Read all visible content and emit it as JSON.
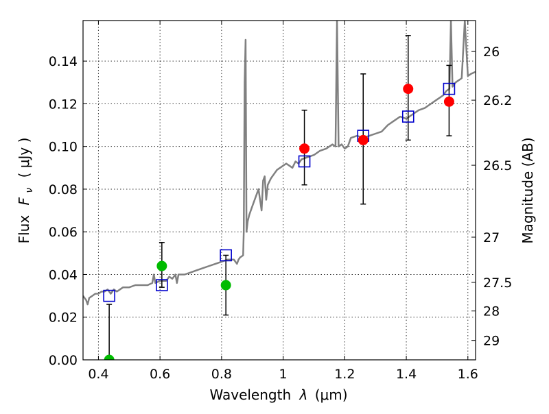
{
  "chart_data": {
    "type": "scatter",
    "xlabel_prefix": "Wavelength",
    "xlabel_symbol": "λ",
    "xlabel_unit": "(μm)",
    "ylabel_prefix": "Flux",
    "ylabel_symbol": "F",
    "ylabel_subscript": "ν",
    "ylabel_unit": "( μJy )",
    "y2label": "Magnitude (AB)",
    "xlim": [
      0.35,
      1.625
    ],
    "ylim": [
      0.0,
      0.159
    ],
    "grid": true,
    "x_ticks": [
      0.4,
      0.6,
      0.8,
      1.0,
      1.2,
      1.4,
      1.6
    ],
    "x_tick_labels": [
      "0.4",
      "0.6",
      "0.8",
      "1",
      "1.2",
      "1.4",
      "1.6"
    ],
    "y_ticks": [
      0.0,
      0.02,
      0.04,
      0.06,
      0.08,
      0.1,
      0.12,
      0.14
    ],
    "y_tick_labels": [
      "0.00",
      "0.02",
      "0.04",
      "0.06",
      "0.08",
      "0.10",
      "0.12",
      "0.14"
    ],
    "y2_ticks": [
      {
        "flux": 0.1445,
        "label": "26"
      },
      {
        "flux": 0.1217,
        "label": "26.2"
      },
      {
        "flux": 0.0912,
        "label": "26.5"
      },
      {
        "flux": 0.0575,
        "label": "27"
      },
      {
        "flux": 0.0363,
        "label": "27.5"
      },
      {
        "flux": 0.0229,
        "label": "28"
      },
      {
        "flux": 0.0091,
        "label": "29"
      }
    ],
    "model_sed_color": "#808080",
    "model_sed": [
      [
        0.35,
        0.03
      ],
      [
        0.36,
        0.028
      ],
      [
        0.365,
        0.026
      ],
      [
        0.37,
        0.029
      ],
      [
        0.38,
        0.03
      ],
      [
        0.39,
        0.031
      ],
      [
        0.4,
        0.031
      ],
      [
        0.41,
        0.032
      ],
      [
        0.42,
        0.032
      ],
      [
        0.43,
        0.033
      ],
      [
        0.44,
        0.031
      ],
      [
        0.45,
        0.033
      ],
      [
        0.46,
        0.032
      ],
      [
        0.47,
        0.033
      ],
      [
        0.48,
        0.034
      ],
      [
        0.5,
        0.034
      ],
      [
        0.52,
        0.035
      ],
      [
        0.54,
        0.035
      ],
      [
        0.56,
        0.035
      ],
      [
        0.575,
        0.036
      ],
      [
        0.58,
        0.04
      ],
      [
        0.585,
        0.036
      ],
      [
        0.6,
        0.037
      ],
      [
        0.62,
        0.037
      ],
      [
        0.63,
        0.039
      ],
      [
        0.64,
        0.038
      ],
      [
        0.65,
        0.04
      ],
      [
        0.655,
        0.036
      ],
      [
        0.66,
        0.04
      ],
      [
        0.68,
        0.04
      ],
      [
        0.7,
        0.041
      ],
      [
        0.72,
        0.042
      ],
      [
        0.74,
        0.043
      ],
      [
        0.76,
        0.044
      ],
      [
        0.78,
        0.045
      ],
      [
        0.8,
        0.046
      ],
      [
        0.82,
        0.047
      ],
      [
        0.84,
        0.047
      ],
      [
        0.85,
        0.045
      ],
      [
        0.855,
        0.047
      ],
      [
        0.86,
        0.048
      ],
      [
        0.87,
        0.049
      ],
      [
        0.872,
        0.06
      ],
      [
        0.875,
        0.13
      ],
      [
        0.878,
        0.15
      ],
      [
        0.881,
        0.06
      ],
      [
        0.885,
        0.065
      ],
      [
        0.89,
        0.068
      ],
      [
        0.9,
        0.072
      ],
      [
        0.91,
        0.076
      ],
      [
        0.92,
        0.08
      ],
      [
        0.93,
        0.07
      ],
      [
        0.935,
        0.084
      ],
      [
        0.94,
        0.086
      ],
      [
        0.945,
        0.075
      ],
      [
        0.95,
        0.082
      ],
      [
        0.96,
        0.085
      ],
      [
        0.97,
        0.087
      ],
      [
        0.98,
        0.089
      ],
      [
        0.99,
        0.09
      ],
      [
        1.0,
        0.091
      ],
      [
        1.01,
        0.092
      ],
      [
        1.02,
        0.091
      ],
      [
        1.03,
        0.09
      ],
      [
        1.04,
        0.093
      ],
      [
        1.05,
        0.092
      ],
      [
        1.06,
        0.094
      ],
      [
        1.08,
        0.095
      ],
      [
        1.1,
        0.096
      ],
      [
        1.12,
        0.098
      ],
      [
        1.14,
        0.099
      ],
      [
        1.16,
        0.101
      ],
      [
        1.17,
        0.1
      ],
      [
        1.175,
        0.159
      ],
      [
        1.18,
        0.1
      ],
      [
        1.19,
        0.101
      ],
      [
        1.2,
        0.099
      ],
      [
        1.21,
        0.1
      ],
      [
        1.22,
        0.104
      ],
      [
        1.24,
        0.105
      ],
      [
        1.26,
        0.104
      ],
      [
        1.28,
        0.105
      ],
      [
        1.3,
        0.106
      ],
      [
        1.32,
        0.107
      ],
      [
        1.34,
        0.11
      ],
      [
        1.36,
        0.112
      ],
      [
        1.38,
        0.114
      ],
      [
        1.4,
        0.113
      ],
      [
        1.42,
        0.115
      ],
      [
        1.44,
        0.117
      ],
      [
        1.46,
        0.118
      ],
      [
        1.48,
        0.12
      ],
      [
        1.5,
        0.122
      ],
      [
        1.52,
        0.124
      ],
      [
        1.53,
        0.126
      ],
      [
        1.54,
        0.127
      ],
      [
        1.545,
        0.159
      ],
      [
        1.55,
        0.128
      ],
      [
        1.56,
        0.13
      ],
      [
        1.57,
        0.131
      ],
      [
        1.58,
        0.132
      ],
      [
        1.59,
        0.159
      ],
      [
        1.6,
        0.133
      ],
      [
        1.61,
        0.134
      ],
      [
        1.625,
        0.135
      ]
    ],
    "model_photometry": {
      "marker": "open-square",
      "color": "#0000cc",
      "points": [
        {
          "x": 0.435,
          "y": 0.03
        },
        {
          "x": 0.606,
          "y": 0.035
        },
        {
          "x": 0.814,
          "y": 0.049
        },
        {
          "x": 1.069,
          "y": 0.093
        },
        {
          "x": 1.26,
          "y": 0.105
        },
        {
          "x": 1.406,
          "y": 0.114
        },
        {
          "x": 1.539,
          "y": 0.127
        }
      ]
    },
    "observed_optical": {
      "marker": "filled-circle",
      "color": "#00bb00",
      "points": [
        {
          "x": 0.435,
          "y": 0.0,
          "yerr": [
            0.0,
            0.026
          ]
        },
        {
          "x": 0.606,
          "y": 0.044,
          "yerr": [
            0.034,
            0.055
          ]
        },
        {
          "x": 0.814,
          "y": 0.035,
          "yerr": [
            0.021,
            0.049
          ]
        }
      ]
    },
    "observed_nir": {
      "marker": "filled-circle",
      "color": "#ff0000",
      "points": [
        {
          "x": 1.069,
          "y": 0.099,
          "yerr": [
            0.082,
            0.117
          ]
        },
        {
          "x": 1.26,
          "y": 0.103,
          "yerr": [
            0.073,
            0.134
          ]
        },
        {
          "x": 1.406,
          "y": 0.127,
          "yerr": [
            0.103,
            0.152
          ]
        },
        {
          "x": 1.539,
          "y": 0.121,
          "yerr": [
            0.105,
            0.138
          ]
        }
      ]
    }
  }
}
